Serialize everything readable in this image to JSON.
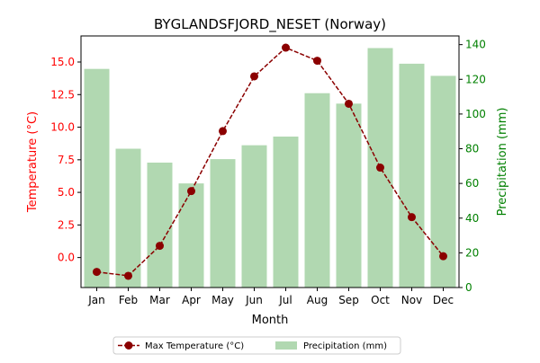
{
  "chart_data": {
    "type": "bar+line",
    "title": "BYGLANDSFJORD_NESET (Norway)",
    "xlabel": "Month",
    "categories": [
      "Jan",
      "Feb",
      "Mar",
      "Apr",
      "May",
      "Jun",
      "Jul",
      "Aug",
      "Sep",
      "Oct",
      "Nov",
      "Dec"
    ],
    "y_left": {
      "label": "Temperature (°C)",
      "color": "#ff0000",
      "ylim": [
        -2.3,
        17.0
      ],
      "ticks": [
        0.0,
        2.5,
        5.0,
        7.5,
        10.0,
        12.5,
        15.0
      ],
      "tick_labels": [
        "0.0",
        "2.5",
        "5.0",
        "7.5",
        "10.0",
        "12.5",
        "15.0"
      ]
    },
    "y_right": {
      "label": "Precipitation (mm)",
      "color": "#008000",
      "ylim": [
        0,
        145
      ],
      "ticks": [
        0,
        20,
        40,
        60,
        80,
        100,
        120,
        140
      ],
      "tick_labels": [
        "0",
        "20",
        "40",
        "60",
        "80",
        "100",
        "120",
        "140"
      ]
    },
    "series": [
      {
        "name": "Max Temperature (°C)",
        "kind": "line",
        "axis": "left",
        "color": "#8b0000",
        "values": [
          -1.1,
          -1.4,
          0.9,
          5.1,
          9.7,
          13.9,
          16.1,
          15.1,
          11.8,
          6.9,
          3.1,
          0.1
        ]
      },
      {
        "name": "Precipitation (mm)",
        "kind": "bar",
        "axis": "right",
        "color": "#b1d8b1",
        "values": [
          126,
          80,
          72,
          60,
          74,
          82,
          87,
          112,
          106,
          138,
          129,
          122
        ]
      }
    ],
    "legend_position": "bottom-center",
    "grid": false
  }
}
